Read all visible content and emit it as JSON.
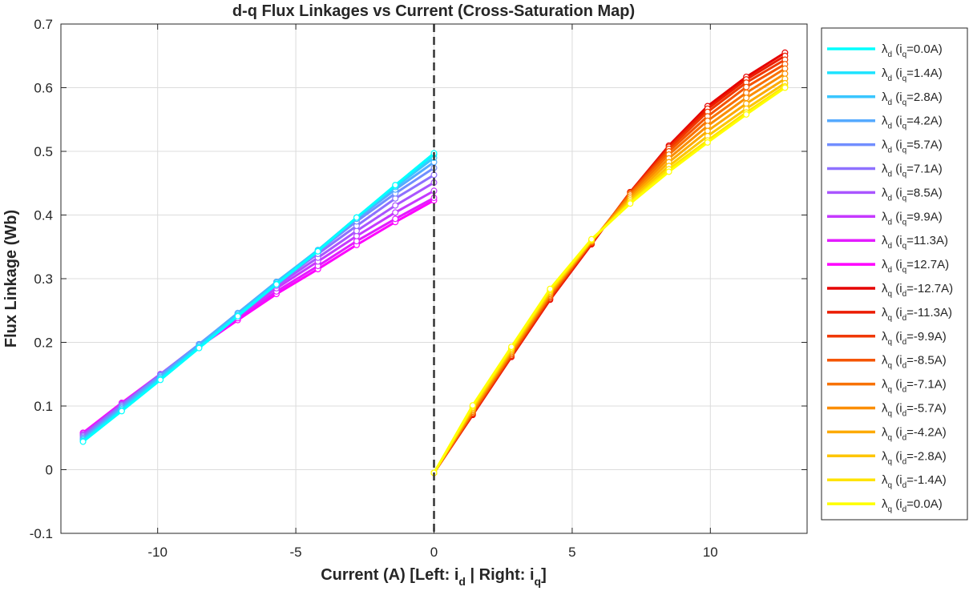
{
  "chart_data": {
    "type": "line",
    "title": "d-q Flux Linkages vs Current (Cross-Saturation Map)",
    "ylabel": "Flux Linkage (Wb)",
    "xlabel": {
      "prefix": "Current (A)  [Left: i",
      "sub1": "d",
      "middle": "  |  Right: i",
      "sub2": "q",
      "suffix": "]"
    },
    "xlim": [
      -13.5,
      13.5
    ],
    "ylim": [
      -0.1,
      0.7
    ],
    "xticks": [
      -10,
      -5,
      0,
      5,
      10
    ],
    "yticks": [
      -0.1,
      0,
      0.1,
      0.2,
      0.3,
      0.4,
      0.5,
      0.6,
      0.7
    ],
    "grid": true,
    "legend_position": "outside-right",
    "vertical_line": {
      "x": 0,
      "style": "dashed",
      "color": "#333333"
    },
    "x_left": [
      -12.7,
      -11.3,
      -9.9,
      -8.5,
      -7.1,
      -5.7,
      -4.2,
      -2.8,
      -1.4,
      0.0
    ],
    "x_right": [
      0.0,
      1.4,
      2.8,
      4.2,
      5.7,
      7.1,
      8.5,
      9.9,
      11.3,
      12.7
    ],
    "series": [
      {
        "name": "λd (iq=0.0A)",
        "symbol": "λ",
        "sub": "d",
        "cond_var": "i",
        "cond_sub": "q",
        "cond_val": "=0.0A",
        "side": "left",
        "color": "#00FFFF",
        "values": [
          0.044,
          0.092,
          0.141,
          0.191,
          0.241,
          0.291,
          0.343,
          0.396,
          0.447,
          0.497
        ]
      },
      {
        "name": "λd (iq=1.4A)",
        "symbol": "λ",
        "sub": "d",
        "cond_var": "i",
        "cond_sub": "q",
        "cond_val": "=1.4A",
        "side": "left",
        "color": "#1CE3FF",
        "values": [
          0.045,
          0.093,
          0.142,
          0.192,
          0.242,
          0.292,
          0.344,
          0.396,
          0.446,
          0.495
        ]
      },
      {
        "name": "λd (iq=2.8A)",
        "symbol": "λ",
        "sub": "d",
        "cond_var": "i",
        "cond_sub": "q",
        "cond_val": "=2.8A",
        "side": "left",
        "color": "#39C6FF",
        "values": [
          0.047,
          0.095,
          0.144,
          0.194,
          0.244,
          0.294,
          0.345,
          0.396,
          0.444,
          0.49
        ]
      },
      {
        "name": "λd (iq=4.2A)",
        "symbol": "λ",
        "sub": "d",
        "cond_var": "i",
        "cond_sub": "q",
        "cond_val": "=4.2A",
        "side": "left",
        "color": "#55AAFF",
        "values": [
          0.048,
          0.097,
          0.146,
          0.196,
          0.246,
          0.295,
          0.345,
          0.394,
          0.44,
          0.483
        ]
      },
      {
        "name": "λd (iq=5.7A)",
        "symbol": "λ",
        "sub": "d",
        "cond_var": "i",
        "cond_sub": "q",
        "cond_val": "=5.7A",
        "side": "left",
        "color": "#718EFF",
        "values": [
          0.05,
          0.099,
          0.148,
          0.197,
          0.246,
          0.295,
          0.343,
          0.39,
          0.434,
          0.474
        ]
      },
      {
        "name": "λd (iq=7.1A)",
        "symbol": "λ",
        "sub": "d",
        "cond_var": "i",
        "cond_sub": "q",
        "cond_val": "=7.1A",
        "side": "left",
        "color": "#8E71FF",
        "values": [
          0.052,
          0.101,
          0.149,
          0.197,
          0.245,
          0.292,
          0.339,
          0.383,
          0.426,
          0.463
        ]
      },
      {
        "name": "λd (iq=8.5A)",
        "symbol": "λ",
        "sub": "d",
        "cond_var": "i",
        "cond_sub": "q",
        "cond_val": "=8.5A",
        "side": "left",
        "color": "#AA55FF",
        "values": [
          0.054,
          0.102,
          0.15,
          0.197,
          0.243,
          0.289,
          0.333,
          0.375,
          0.415,
          0.451
        ]
      },
      {
        "name": "λd (iq=9.9A)",
        "symbol": "λ",
        "sub": "d",
        "cond_var": "i",
        "cond_sub": "q",
        "cond_val": "=9.9A",
        "side": "left",
        "color": "#C639FF",
        "values": [
          0.055,
          0.103,
          0.15,
          0.196,
          0.241,
          0.285,
          0.327,
          0.367,
          0.404,
          0.438
        ]
      },
      {
        "name": "λd (iq=11.3A)",
        "symbol": "λ",
        "sub": "d",
        "cond_var": "i",
        "cond_sub": "q",
        "cond_val": "=11.3A",
        "side": "left",
        "color": "#E31CFF",
        "values": [
          0.057,
          0.104,
          0.15,
          0.194,
          0.238,
          0.28,
          0.32,
          0.359,
          0.394,
          0.427
        ]
      },
      {
        "name": "λd (iq=12.7A)",
        "symbol": "λ",
        "sub": "d",
        "cond_var": "i",
        "cond_sub": "q",
        "cond_val": "=12.7A",
        "side": "left",
        "color": "#FF00FF",
        "values": [
          0.058,
          0.105,
          0.15,
          0.193,
          0.235,
          0.276,
          0.315,
          0.353,
          0.389,
          0.423
        ]
      },
      {
        "name": "λq (id=-12.7A)",
        "symbol": "λ",
        "sub": "q",
        "cond_var": "i",
        "cond_sub": "d",
        "cond_val": "=-12.7A",
        "side": "right",
        "color": "#E60000",
        "values": [
          -0.005,
          0.086,
          0.177,
          0.267,
          0.354,
          0.436,
          0.509,
          0.571,
          0.617,
          0.655
        ]
      },
      {
        "name": "λq (id=-11.3A)",
        "symbol": "λ",
        "sub": "q",
        "cond_var": "i",
        "cond_sub": "d",
        "cond_val": "=-11.3A",
        "side": "right",
        "color": "#EB1C00",
        "values": [
          -0.005,
          0.087,
          0.178,
          0.268,
          0.355,
          0.436,
          0.507,
          0.567,
          0.613,
          0.65
        ]
      },
      {
        "name": "λq (id=-9.9A)",
        "symbol": "λ",
        "sub": "q",
        "cond_var": "i",
        "cond_sub": "d",
        "cond_val": "=-9.9A",
        "side": "right",
        "color": "#F03800",
        "values": [
          -0.005,
          0.088,
          0.179,
          0.27,
          0.356,
          0.435,
          0.504,
          0.562,
          0.608,
          0.644
        ]
      },
      {
        "name": "λq (id=-8.5A)",
        "symbol": "λ",
        "sub": "q",
        "cond_var": "i",
        "cond_sub": "d",
        "cond_val": "=-8.5A",
        "side": "right",
        "color": "#F55500",
        "values": [
          -0.005,
          0.089,
          0.181,
          0.272,
          0.357,
          0.434,
          0.5,
          0.555,
          0.601,
          0.637
        ]
      },
      {
        "name": "λq (id=-7.1A)",
        "symbol": "λ",
        "sub": "q",
        "cond_var": "i",
        "cond_sub": "d",
        "cond_val": "=-7.1A",
        "side": "right",
        "color": "#F87200",
        "values": [
          -0.005,
          0.091,
          0.183,
          0.274,
          0.358,
          0.432,
          0.495,
          0.548,
          0.592,
          0.63
        ]
      },
      {
        "name": "λq (id=-5.7A)",
        "symbol": "λ",
        "sub": "q",
        "cond_var": "i",
        "cond_sub": "d",
        "cond_val": "=-5.7A",
        "side": "right",
        "color": "#FB8E00",
        "values": [
          -0.005,
          0.093,
          0.185,
          0.276,
          0.359,
          0.429,
          0.489,
          0.54,
          0.584,
          0.622
        ]
      },
      {
        "name": "λq (id=-4.2A)",
        "symbol": "λ",
        "sub": "q",
        "cond_var": "i",
        "cond_sub": "d",
        "cond_val": "=-4.2A",
        "side": "right",
        "color": "#FDAA00",
        "values": [
          -0.005,
          0.095,
          0.187,
          0.278,
          0.359,
          0.426,
          0.483,
          0.532,
          0.575,
          0.614
        ]
      },
      {
        "name": "λq (id=-2.8A)",
        "symbol": "λ",
        "sub": "q",
        "cond_var": "i",
        "cond_sub": "d",
        "cond_val": "=-2.8A",
        "side": "right",
        "color": "#FEC600",
        "values": [
          -0.005,
          0.097,
          0.189,
          0.28,
          0.36,
          0.423,
          0.477,
          0.524,
          0.567,
          0.607
        ]
      },
      {
        "name": "λq (id=-1.4A)",
        "symbol": "λ",
        "sub": "q",
        "cond_var": "i",
        "cond_sub": "d",
        "cond_val": "=-1.4A",
        "side": "right",
        "color": "#FFE300",
        "values": [
          -0.005,
          0.099,
          0.191,
          0.282,
          0.361,
          0.42,
          0.472,
          0.517,
          0.561,
          0.602
        ]
      },
      {
        "name": "λq (id=0.0A)",
        "symbol": "λ",
        "sub": "q",
        "cond_var": "i",
        "cond_sub": "d",
        "cond_val": "=0.0A",
        "side": "right",
        "color": "#FFFF00",
        "values": [
          -0.005,
          0.101,
          0.193,
          0.284,
          0.362,
          0.418,
          0.468,
          0.514,
          0.558,
          0.6
        ]
      }
    ]
  }
}
